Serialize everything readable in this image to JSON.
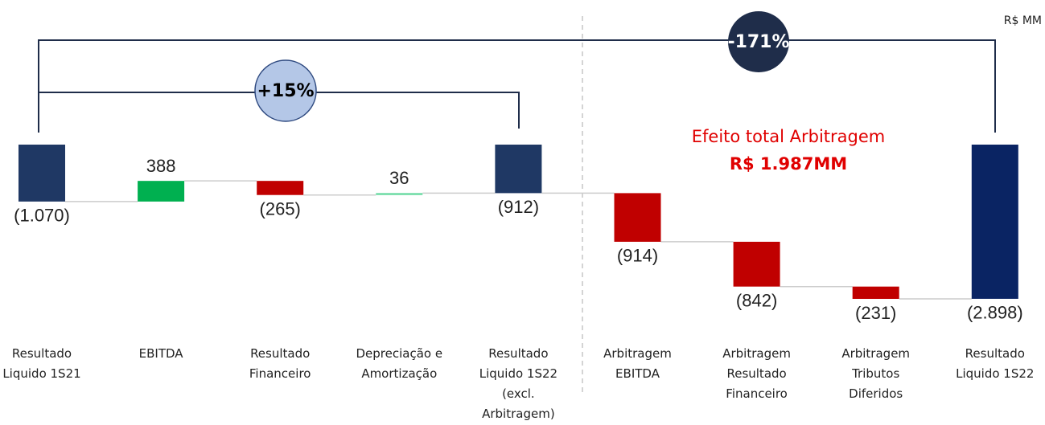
{
  "unit_label": "R$ MM",
  "annotations": {
    "inner_change": "+15%",
    "outer_change": "-171%",
    "arbitrage_title": "Efeito total Arbitragem",
    "arbitrage_value": "R$ 1.987MM"
  },
  "chart_data": {
    "type": "waterfall",
    "categories": [
      "Resultado Liquido 1S21",
      "EBITDA",
      "Resultado Financeiro",
      "Depreciação e Amortização",
      "Resultado Liquido 1S22 (excl. Arbitragem)",
      "Arbitragem EBITDA",
      "Arbitragem Resultado Financeiro",
      "Arbitragem Tributos Diferidos",
      "Resultado Liquido 1S22"
    ],
    "values": [
      -1070,
      388,
      -265,
      36,
      -912,
      -914,
      -842,
      -231,
      -2898
    ],
    "value_labels": [
      "(1.070)",
      "388",
      "(265)",
      "36",
      "(912)",
      "(914)",
      "(842)",
      "(231)",
      "(2.898)"
    ],
    "measures": [
      "absolute",
      "relative",
      "relative",
      "relative",
      "total",
      "relative",
      "relative",
      "relative",
      "total"
    ],
    "colors": [
      "#1f3864",
      "#00b050",
      "#c00000",
      "#66d9a0",
      "#1f3864",
      "#c00000",
      "#c00000",
      "#c00000",
      "#0a2463"
    ]
  }
}
